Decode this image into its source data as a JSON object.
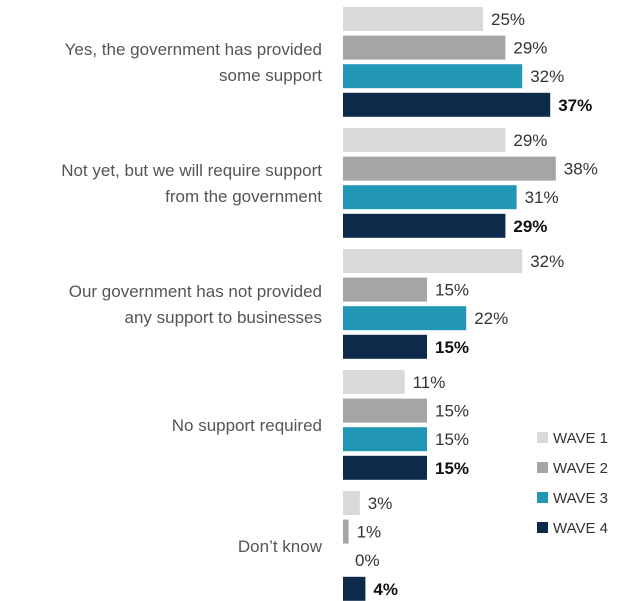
{
  "chart_data": {
    "type": "bar",
    "orientation": "horizontal",
    "categories": [
      "Yes, the government has provided some support",
      "Not yet, but we will require support from the government",
      "Our government has not provided any support to businesses",
      "No support required",
      "Don’t know"
    ],
    "category_lines": [
      [
        "Yes, the government has provided",
        "some support"
      ],
      [
        "Not yet, but we will require support",
        "from the government"
      ],
      [
        "Our government has not provided",
        "any support to businesses"
      ],
      [
        "No support required"
      ],
      [
        "Don’t know"
      ]
    ],
    "series": [
      {
        "name": "WAVE 1",
        "color": "#d9d9d9",
        "values": [
          25,
          29,
          32,
          11,
          3
        ]
      },
      {
        "name": "WAVE 2",
        "color": "#a5a5a5",
        "values": [
          29,
          38,
          15,
          15,
          1
        ]
      },
      {
        "name": "WAVE 3",
        "color": "#2196b5",
        "values": [
          32,
          31,
          22,
          15,
          0
        ]
      },
      {
        "name": "WAVE 4",
        "color": "#0d2a4a",
        "values": [
          37,
          29,
          15,
          15,
          4
        ]
      }
    ],
    "value_suffix": "%",
    "bold_series": "WAVE 4",
    "legend_position": "bottom-right",
    "grid": false
  }
}
